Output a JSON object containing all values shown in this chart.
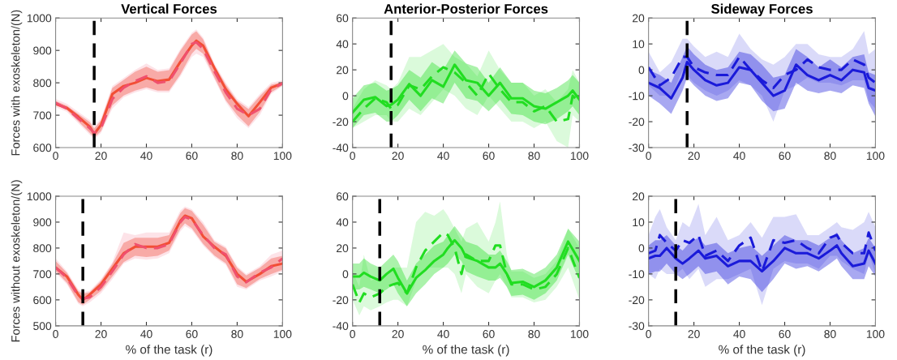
{
  "chart_data": [
    {
      "type": "line",
      "title": "Vertical Forces",
      "ylabel": "Forces with exoskeleton/(N)",
      "xlim": [
        0,
        100
      ],
      "xticks": [
        0,
        20,
        40,
        60,
        80,
        100
      ],
      "ylim": [
        600,
        1000
      ],
      "yticks": [
        600,
        700,
        800,
        900,
        1000
      ],
      "ref_lines": [
        {
          "axis": "x",
          "value": 17,
          "color": "#000000",
          "line_style": "dashed"
        }
      ],
      "series": [
        {
          "color": "#f24e35",
          "line_style": "solid",
          "x": [
            0,
            5,
            10,
            15,
            17,
            20,
            25,
            30,
            35,
            40,
            45,
            50,
            55,
            60,
            62,
            65,
            70,
            75,
            80,
            85,
            90,
            95,
            100
          ],
          "values": [
            735,
            722,
            695,
            665,
            642,
            670,
            765,
            790,
            800,
            815,
            805,
            810,
            865,
            915,
            930,
            915,
            845,
            780,
            735,
            697,
            740,
            785,
            798
          ],
          "lower": [
            731,
            716,
            681,
            646,
            631,
            651,
            730,
            761,
            776,
            786,
            776,
            776,
            826,
            890,
            905,
            890,
            816,
            746,
            700,
            666,
            710,
            771,
            792
          ],
          "upper": [
            744,
            729,
            704,
            679,
            659,
            684,
            784,
            809,
            834,
            850,
            834,
            839,
            899,
            949,
            959,
            934,
            854,
            794,
            744,
            719,
            759,
            794,
            802
          ]
        },
        {
          "color": "#f0506e",
          "line_style": "dashed",
          "x": [
            0,
            5,
            10,
            15,
            17,
            20,
            25,
            30,
            35,
            40,
            45,
            50,
            55,
            60,
            62,
            65,
            70,
            75,
            80,
            85,
            90,
            95,
            100
          ],
          "values": [
            738,
            720,
            690,
            660,
            645,
            660,
            750,
            785,
            805,
            820,
            800,
            805,
            860,
            920,
            925,
            905,
            835,
            770,
            720,
            700,
            720,
            780,
            798
          ],
          "lower": [
            725,
            710,
            675,
            640,
            625,
            645,
            720,
            755,
            770,
            780,
            770,
            770,
            820,
            880,
            890,
            880,
            810,
            740,
            690,
            660,
            700,
            765,
            790
          ],
          "upper": [
            750,
            735,
            710,
            685,
            665,
            690,
            790,
            815,
            840,
            860,
            840,
            845,
            905,
            955,
            965,
            940,
            860,
            800,
            750,
            725,
            765,
            800,
            808
          ]
        }
      ]
    },
    {
      "type": "line",
      "title": "Anterior-Posterior Forces",
      "xlim": [
        0,
        100
      ],
      "xticks": [
        0,
        20,
        40,
        60,
        80,
        100
      ],
      "ylim": [
        -40,
        60
      ],
      "yticks": [
        -40,
        -20,
        0,
        20,
        40,
        60
      ],
      "ref_lines": [
        {
          "axis": "x",
          "value": 17,
          "color": "#000000",
          "line_style": "dashed"
        }
      ],
      "series": [
        {
          "color": "#21dd21",
          "line_style": "solid",
          "x": [
            0,
            5,
            10,
            15,
            17,
            20,
            25,
            30,
            35,
            40,
            45,
            50,
            55,
            60,
            65,
            70,
            75,
            80,
            85,
            90,
            95,
            97,
            100
          ],
          "values": [
            -13,
            -3,
            -1,
            -8,
            -7,
            -3,
            9,
            0,
            12,
            7,
            24,
            12,
            10,
            0,
            10,
            -2,
            -2,
            -8,
            -10,
            -5,
            0,
            4,
            -3
          ],
          "lower": [
            -25,
            -15,
            -13,
            -20,
            -20,
            -15,
            -3,
            -12,
            -2,
            -6,
            10,
            -2,
            -4,
            -12,
            -3,
            -14,
            -15,
            -20,
            -22,
            -18,
            -12,
            -8,
            -15
          ],
          "upper": [
            -2,
            8,
            10,
            4,
            5,
            8,
            20,
            14,
            26,
            20,
            35,
            25,
            22,
            10,
            22,
            10,
            10,
            4,
            2,
            6,
            12,
            16,
            10
          ]
        },
        {
          "color": "#21dd21",
          "line_style": "dashed",
          "x": [
            0,
            5,
            10,
            15,
            17,
            20,
            25,
            30,
            35,
            40,
            45,
            50,
            55,
            60,
            65,
            70,
            75,
            80,
            85,
            90,
            95,
            97,
            100
          ],
          "values": [
            -20,
            -10,
            -2,
            -5,
            -10,
            -7,
            8,
            5,
            15,
            22,
            18,
            10,
            0,
            17,
            5,
            -5,
            -5,
            -12,
            -8,
            -20,
            -18,
            0,
            -5
          ],
          "lower": [
            -25,
            -20,
            -15,
            -15,
            -20,
            -20,
            -10,
            -15,
            -5,
            5,
            0,
            -10,
            -15,
            0,
            -10,
            -20,
            -20,
            -25,
            -20,
            -35,
            -40,
            -15,
            -20
          ],
          "upper": [
            -10,
            5,
            12,
            8,
            5,
            10,
            30,
            30,
            35,
            40,
            30,
            25,
            15,
            35,
            20,
            10,
            10,
            0,
            5,
            -5,
            5,
            20,
            10
          ]
        }
      ]
    },
    {
      "type": "line",
      "title": "Sideway Forces",
      "xlim": [
        0,
        100
      ],
      "xticks": [
        0,
        20,
        40,
        60,
        80,
        100
      ],
      "ylim": [
        -30,
        20
      ],
      "yticks": [
        -30,
        -20,
        -10,
        0,
        10,
        20
      ],
      "ref_lines": [
        {
          "axis": "x",
          "value": 17,
          "color": "#000000",
          "line_style": "dashed"
        }
      ],
      "series": [
        {
          "color": "#1a1ad9",
          "line_style": "solid",
          "x": [
            0,
            5,
            10,
            15,
            17,
            20,
            25,
            30,
            35,
            40,
            45,
            50,
            55,
            60,
            65,
            70,
            75,
            80,
            85,
            90,
            95,
            97,
            100
          ],
          "values": [
            -5,
            -7,
            -11,
            -3,
            3,
            0,
            -4,
            -6,
            -5,
            1,
            0,
            -5,
            -10,
            -8,
            2,
            -2,
            -4,
            -2,
            -4,
            0,
            -1,
            -7,
            -8
          ],
          "lower": [
            -10,
            -13,
            -17,
            -8,
            -3,
            -6,
            -10,
            -12,
            -11,
            -5,
            -6,
            -12,
            -16,
            -15,
            -5,
            -8,
            -9,
            -8,
            -9,
            -6,
            -7,
            -13,
            -18
          ],
          "upper": [
            0,
            -2,
            -5,
            5,
            9,
            6,
            2,
            0,
            1,
            7,
            6,
            2,
            -3,
            -2,
            8,
            5,
            1,
            4,
            1,
            5,
            6,
            -1,
            -2
          ]
        },
        {
          "color": "#1a1ad9",
          "line_style": "dashed",
          "x": [
            0,
            5,
            10,
            15,
            17,
            20,
            25,
            30,
            35,
            40,
            45,
            50,
            55,
            60,
            65,
            70,
            75,
            80,
            85,
            90,
            95,
            97,
            100
          ],
          "values": [
            1,
            -6,
            -3,
            5,
            5,
            1,
            -1,
            -2,
            -2,
            5,
            0,
            -4,
            -7,
            -2,
            0,
            4,
            1,
            0,
            0,
            4,
            2,
            -3,
            -5
          ],
          "lower": [
            -6,
            -10,
            -10,
            0,
            -2,
            -5,
            -8,
            -10,
            -8,
            -4,
            -6,
            -10,
            -20,
            -8,
            -6,
            -3,
            -5,
            -5,
            -6,
            -4,
            -4,
            -12,
            -15
          ],
          "upper": [
            7,
            -1,
            3,
            12,
            12,
            9,
            5,
            7,
            5,
            14,
            8,
            4,
            2,
            5,
            10,
            10,
            6,
            5,
            5,
            8,
            15,
            6,
            8
          ]
        }
      ]
    },
    {
      "type": "line",
      "xlabel": "% of the task (r)",
      "ylabel": "Forces without exoskeleton/(N)",
      "xlim": [
        0,
        100
      ],
      "xticks": [
        0,
        20,
        40,
        60,
        80,
        100
      ],
      "ylim": [
        500,
        1000
      ],
      "yticks": [
        500,
        600,
        700,
        800,
        900,
        1000
      ],
      "ref_lines": [
        {
          "axis": "x",
          "value": 12,
          "color": "#000000",
          "line_style": "dashed"
        }
      ],
      "series": [
        {
          "color": "#f24e35",
          "line_style": "solid",
          "x": [
            0,
            5,
            10,
            12,
            15,
            20,
            25,
            30,
            35,
            40,
            45,
            50,
            55,
            57,
            60,
            65,
            70,
            75,
            80,
            84,
            90,
            95,
            100
          ],
          "values": [
            725,
            690,
            620,
            600,
            620,
            660,
            720,
            780,
            805,
            805,
            805,
            820,
            905,
            925,
            915,
            845,
            805,
            770,
            700,
            670,
            700,
            730,
            740
          ],
          "lower": [
            711,
            666,
            591,
            581,
            600,
            635,
            690,
            746,
            770,
            765,
            770,
            790,
            875,
            895,
            876,
            816,
            771,
            741,
            660,
            646,
            681,
            700,
            716
          ],
          "upper": [
            750,
            704,
            634,
            624,
            629,
            674,
            739,
            820,
            840,
            840,
            840,
            850,
            935,
            954,
            944,
            890,
            824,
            799,
            724,
            694,
            724,
            760,
            770
          ]
        },
        {
          "color": "#f0506e",
          "line_style": "dashed",
          "x": [
            0,
            5,
            10,
            12,
            15,
            20,
            25,
            30,
            35,
            40,
            45,
            50,
            55,
            57,
            60,
            65,
            70,
            75,
            80,
            84,
            90,
            95,
            100
          ],
          "values": [
            725,
            685,
            615,
            605,
            610,
            650,
            710,
            775,
            815,
            800,
            800,
            815,
            900,
            920,
            910,
            850,
            800,
            775,
            690,
            668,
            705,
            725,
            760
          ],
          "lower": [
            705,
            660,
            585,
            575,
            590,
            625,
            680,
            740,
            760,
            755,
            760,
            780,
            865,
            885,
            870,
            810,
            765,
            735,
            650,
            640,
            675,
            690,
            710
          ],
          "upper": [
            760,
            710,
            640,
            630,
            635,
            680,
            745,
            860,
            850,
            860,
            860,
            860,
            945,
            960,
            950,
            900,
            830,
            805,
            730,
            700,
            730,
            775,
            790
          ]
        }
      ]
    },
    {
      "type": "line",
      "xlabel": "% of the task (r)",
      "xlim": [
        0,
        100
      ],
      "xticks": [
        0,
        20,
        40,
        60,
        80,
        100
      ],
      "ylim": [
        -40,
        60
      ],
      "yticks": [
        -40,
        -20,
        0,
        20,
        40,
        60
      ],
      "ref_lines": [
        {
          "axis": "x",
          "value": 12,
          "color": "#000000",
          "line_style": "dashed"
        }
      ],
      "series": [
        {
          "color": "#21dd21",
          "line_style": "solid",
          "x": [
            0,
            3,
            5,
            8,
            12,
            15,
            18,
            20,
            24,
            28,
            32,
            36,
            40,
            42,
            45,
            48,
            50,
            55,
            60,
            63,
            65,
            68,
            70,
            75,
            80,
            85,
            90,
            95,
            100
          ],
          "values": [
            -2,
            -2,
            1,
            -2,
            -5,
            0,
            4,
            -3,
            -15,
            -3,
            3,
            10,
            15,
            20,
            26,
            20,
            13,
            10,
            5,
            5,
            8,
            0,
            -7,
            -6,
            -10,
            -5,
            5,
            25,
            10
          ],
          "lower": [
            -12,
            -12,
            -10,
            -12,
            -15,
            -12,
            -8,
            -15,
            -25,
            -15,
            -8,
            0,
            5,
            8,
            15,
            10,
            2,
            -2,
            -5,
            -5,
            -3,
            -10,
            -17,
            -16,
            -20,
            -15,
            -5,
            15,
            -5
          ],
          "upper": [
            8,
            8,
            12,
            8,
            5,
            10,
            15,
            10,
            -5,
            8,
            15,
            22,
            25,
            30,
            37,
            30,
            25,
            22,
            15,
            15,
            18,
            10,
            3,
            4,
            0,
            5,
            15,
            35,
            25
          ]
        },
        {
          "color": "#21dd21",
          "line_style": "dashed",
          "x": [
            0,
            3,
            5,
            8,
            12,
            15,
            18,
            20,
            24,
            28,
            32,
            36,
            40,
            42,
            45,
            48,
            50,
            55,
            60,
            63,
            65,
            68,
            70,
            75,
            80,
            85,
            90,
            95,
            100
          ],
          "values": [
            -8,
            -22,
            -15,
            -18,
            -15,
            -10,
            -8,
            -7,
            -15,
            5,
            18,
            25,
            32,
            30,
            20,
            0,
            15,
            10,
            10,
            22,
            22,
            0,
            -8,
            -8,
            -12,
            -10,
            0,
            20,
            -3
          ],
          "lower": [
            -20,
            -32,
            -25,
            -28,
            -25,
            -22,
            -20,
            -20,
            -25,
            -5,
            5,
            5,
            5,
            5,
            0,
            -15,
            0,
            -10,
            -15,
            -5,
            0,
            -10,
            -18,
            -18,
            -22,
            -20,
            -10,
            5,
            -20
          ],
          "upper": [
            2,
            -10,
            15,
            -5,
            -3,
            0,
            5,
            5,
            5,
            40,
            48,
            45,
            50,
            45,
            35,
            25,
            35,
            40,
            25,
            40,
            56,
            15,
            2,
            2,
            -3,
            0,
            10,
            35,
            20
          ]
        }
      ]
    },
    {
      "type": "line",
      "xlabel": "% of the task (r)",
      "xlim": [
        0,
        100
      ],
      "xticks": [
        0,
        20,
        40,
        60,
        80,
        100
      ],
      "ylim": [
        -30,
        20
      ],
      "yticks": [
        -30,
        -20,
        -10,
        0,
        10,
        20
      ],
      "ref_lines": [
        {
          "axis": "x",
          "value": 12,
          "color": "#000000",
          "line_style": "dashed"
        }
      ],
      "series": [
        {
          "color": "#1a1ad9",
          "line_style": "solid",
          "x": [
            0,
            3,
            5,
            8,
            12,
            15,
            18,
            22,
            25,
            30,
            35,
            40,
            45,
            50,
            55,
            60,
            65,
            70,
            75,
            80,
            83,
            85,
            90,
            95,
            97,
            100
          ],
          "values": [
            -4,
            -3,
            -3,
            0,
            -4,
            -6,
            -4,
            -1,
            -4,
            -3,
            -7,
            -5,
            -5,
            -9,
            -5,
            0,
            -2,
            -2,
            -4,
            -1,
            1,
            -2,
            -7,
            -6,
            -1,
            -6
          ],
          "lower": [
            -10,
            -9,
            -9,
            -6,
            -10,
            -12,
            -10,
            -7,
            -10,
            -9,
            -14,
            -11,
            -12,
            -17,
            -12,
            -6,
            -8,
            -7,
            -9,
            -6,
            -4,
            -7,
            -12,
            -12,
            -7,
            -11
          ],
          "upper": [
            1,
            3,
            3,
            5,
            1,
            -1,
            2,
            4,
            1,
            2,
            -2,
            0,
            1,
            -3,
            1,
            5,
            3,
            3,
            1,
            4,
            6,
            3,
            -2,
            0,
            4,
            0
          ]
        },
        {
          "color": "#1a1ad9",
          "line_style": "dashed",
          "x": [
            0,
            3,
            5,
            8,
            12,
            15,
            18,
            22,
            25,
            30,
            35,
            40,
            45,
            50,
            55,
            60,
            65,
            70,
            75,
            80,
            83,
            85,
            90,
            95,
            97,
            100
          ],
          "values": [
            -2,
            -1,
            5,
            2,
            -1,
            3,
            2,
            5,
            -3,
            -1,
            -5,
            1,
            4,
            -9,
            3,
            2,
            3,
            0,
            -2,
            4,
            5,
            2,
            -2,
            -2,
            6,
            -1
          ],
          "lower": [
            -10,
            -12,
            -8,
            -10,
            -10,
            -8,
            -12,
            -8,
            -15,
            -12,
            -12,
            -10,
            -8,
            -22,
            -8,
            -5,
            -6,
            -6,
            -8,
            -3,
            -3,
            -5,
            -8,
            -10,
            -2,
            -10
          ],
          "upper": [
            5,
            12,
            15,
            8,
            3,
            10,
            8,
            17,
            5,
            12,
            3,
            5,
            10,
            4,
            12,
            12,
            13,
            5,
            5,
            8,
            10,
            8,
            7,
            10,
            14,
            8
          ]
        }
      ]
    }
  ]
}
